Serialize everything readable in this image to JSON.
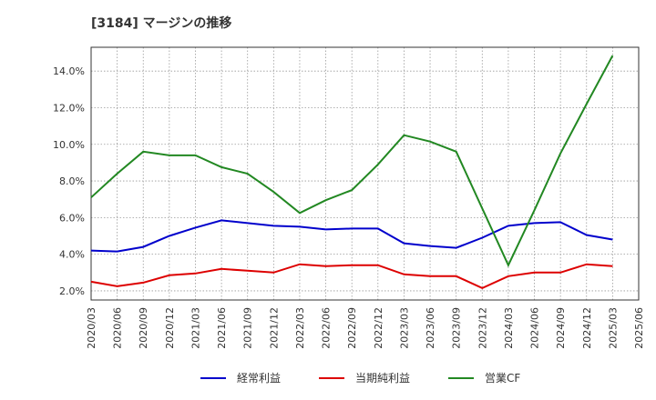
{
  "chart_data": {
    "type": "line",
    "title": "[3184]  マージンの推移",
    "x": [
      "2020/03",
      "2020/06",
      "2020/09",
      "2020/12",
      "2021/03",
      "2021/06",
      "2021/09",
      "2021/12",
      "2022/03",
      "2022/06",
      "2022/09",
      "2022/12",
      "2023/03",
      "2023/06",
      "2023/09",
      "2023/12",
      "2024/03",
      "2024/06",
      "2024/09",
      "2024/12",
      "2025/03",
      "2025/06"
    ],
    "y_ticks": [
      "2.0%",
      "4.0%",
      "6.0%",
      "8.0%",
      "10.0%",
      "12.0%",
      "14.0%"
    ],
    "ylim": [
      1.5,
      15.3
    ],
    "grid": true,
    "legend_position": "bottom",
    "series": [
      {
        "name": "経常利益",
        "color": "#0000cc",
        "values": [
          4.2,
          4.15,
          4.4,
          5.0,
          5.45,
          5.85,
          5.7,
          5.55,
          5.5,
          5.35,
          5.4,
          5.4,
          4.6,
          4.45,
          4.35,
          4.9,
          5.55,
          5.7,
          5.75,
          5.05,
          4.8,
          null
        ]
      },
      {
        "name": "当期純利益",
        "color": "#dd0000",
        "values": [
          2.5,
          2.25,
          2.45,
          2.85,
          2.95,
          3.2,
          3.1,
          3.0,
          3.45,
          3.35,
          3.4,
          3.4,
          2.9,
          2.8,
          2.8,
          2.15,
          2.8,
          3.0,
          3.0,
          3.45,
          3.35,
          null
        ]
      },
      {
        "name": "営業CF",
        "color": "#228822",
        "values": [
          7.1,
          8.4,
          9.6,
          9.4,
          9.4,
          8.75,
          8.4,
          7.4,
          6.25,
          6.95,
          7.5,
          8.9,
          10.5,
          10.15,
          9.6,
          6.5,
          3.4,
          6.4,
          9.5,
          12.2,
          14.85,
          null
        ]
      }
    ]
  }
}
